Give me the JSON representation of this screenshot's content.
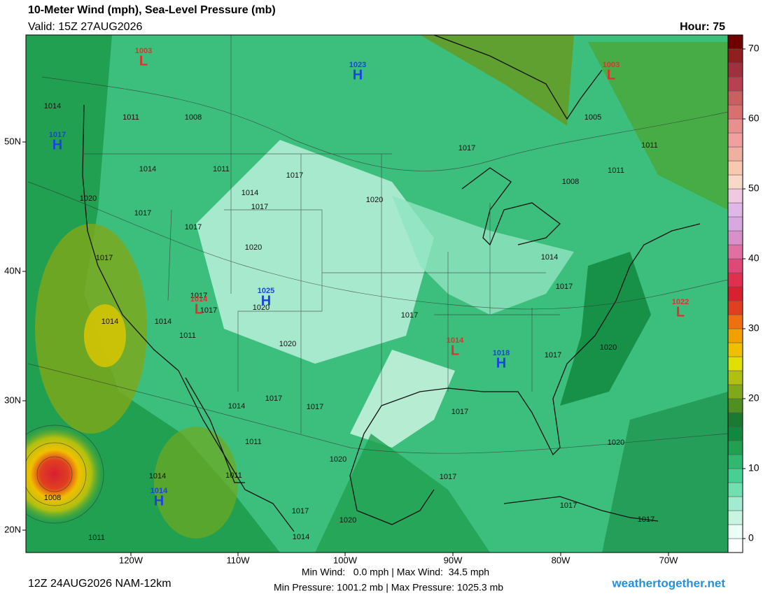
{
  "header": {
    "title": "10-Meter Wind (mph), Sea-Level Pressure (mb)",
    "valid": "Valid: 15Z 27AUG2026",
    "hour": "Hour: 75"
  },
  "map": {
    "lat_labels": [
      "50N",
      "40N",
      "30N",
      "20N"
    ],
    "lon_labels": [
      "120W",
      "110W",
      "100W",
      "90W",
      "80W",
      "70W"
    ],
    "isobar_labels": [
      "1014",
      "1011",
      "1008",
      "1005",
      "1011",
      "1017",
      "1014",
      "1011",
      "1017",
      "1011",
      "1008",
      "1014",
      "1020",
      "1020",
      "1017",
      "1017",
      "1017",
      "1020",
      "1014",
      "1017",
      "1017",
      "1017",
      "1017",
      "1020",
      "1017",
      "1014",
      "1014",
      "1011",
      "1020",
      "1020",
      "1017",
      "1017",
      "1014",
      "1017",
      "1017",
      "1011",
      "1020",
      "1020",
      "1017",
      "1011",
      "1014",
      "1008",
      "1017",
      "1020",
      "1017",
      "1017",
      "1014",
      "1011"
    ],
    "centers": [
      {
        "label": "1003",
        "symbol": "L"
      },
      {
        "label": "1023",
        "symbol": "H"
      },
      {
        "label": "1003",
        "symbol": "L"
      },
      {
        "label": "1017",
        "symbol": "H"
      },
      {
        "label": "1025",
        "symbol": "H"
      },
      {
        "label": "1022",
        "symbol": "L"
      },
      {
        "label": "1014",
        "symbol": "L"
      },
      {
        "label": "1014",
        "symbol": "L"
      },
      {
        "label": "1018",
        "symbol": "H"
      },
      {
        "label": "1014",
        "symbol": "H"
      }
    ],
    "high_color": "#1a44e0",
    "low_color": "#e03030"
  },
  "colorbar": {
    "ticks": [
      0,
      10,
      20,
      30,
      40,
      50,
      60,
      70
    ],
    "lim": [
      -2,
      72
    ],
    "colors": [
      "#ffffff",
      "#eafff6",
      "#c8f5e0",
      "#a0ecd0",
      "#70e0b0",
      "#48d094",
      "#30b870",
      "#20a050",
      "#108840",
      "#1a7a30",
      "#509020",
      "#80a818",
      "#b0c010",
      "#e0e000",
      "#f0c000",
      "#f0a000",
      "#f07010",
      "#e04020",
      "#d82030",
      "#e03050",
      "#e04878",
      "#e070a0",
      "#d890c8",
      "#d8a8e0",
      "#e0b8e8",
      "#f0c8e0",
      "#f8d8c8",
      "#f8c8b0",
      "#f0b0a0",
      "#f0a0a0",
      "#e89090",
      "#d87070",
      "#c86060",
      "#b84050",
      "#a03040",
      "#902020",
      "#700000"
    ]
  },
  "footer": {
    "run": "12Z 24AUG2026 NAM-12km",
    "wind": "Min Wind:   0.0 mph | Max Wind:  34.5 mph",
    "pressure": "Min Pressure: 1001.2 mb | Max Pressure: 1025.3 mb",
    "site": "weathertogether.net"
  }
}
